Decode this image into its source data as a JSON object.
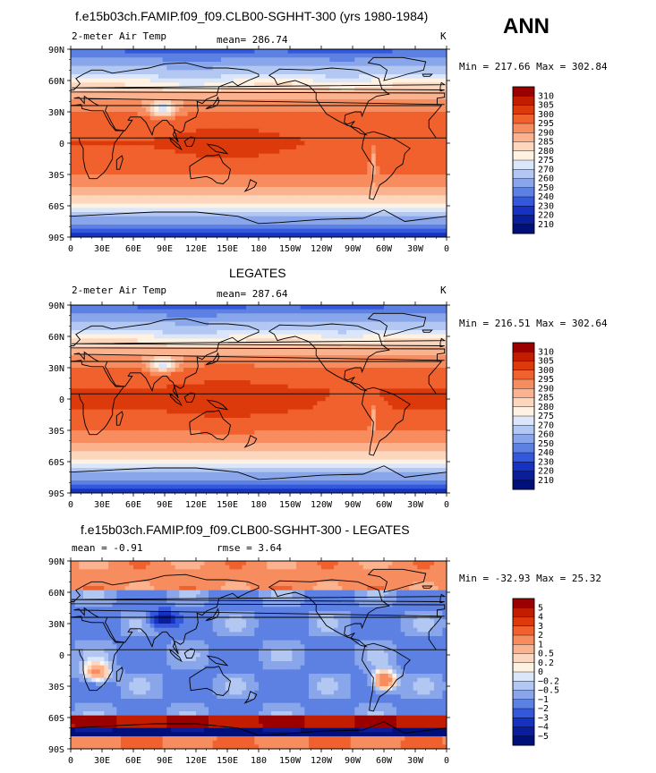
{
  "season": "ANN",
  "chart_data": [
    {
      "type": "heatmap",
      "title": "f.e15b03ch.FAMIP.f09_f09.CLB00-SGHHT-300 (yrs 1980-1984)",
      "left_label": "2-meter Air Temp",
      "center_label": "mean= 286.74",
      "right_label": "K",
      "minmax": "Min = 217.66 Max = 302.84",
      "xticks": [
        "0",
        "30E",
        "60E",
        "90E",
        "120E",
        "150E",
        "180",
        "150W",
        "120W",
        "90W",
        "60W",
        "30W",
        "0"
      ],
      "yticks": [
        "90N",
        "60N",
        "30N",
        "0",
        "30S",
        "60S",
        "90S"
      ],
      "levels": [
        "310",
        "305",
        "300",
        "295",
        "290",
        "285",
        "280",
        "275",
        "270",
        "260",
        "250",
        "240",
        "230",
        "220",
        "210"
      ],
      "colors": [
        "#9b0000",
        "#c31d00",
        "#dd3a0c",
        "#f0612e",
        "#f78c5e",
        "#fbb28e",
        "#fcd6bd",
        "#fff2e2",
        "#dbe6fb",
        "#b2c8f2",
        "#8aa6ea",
        "#5d80e3",
        "#3358db",
        "#1532c1",
        "#0a1e9c",
        "#00107a"
      ]
    },
    {
      "type": "heatmap",
      "title": "LEGATES",
      "left_label": "2-meter Air Temp",
      "center_label": "mean= 287.64",
      "right_label": "K",
      "minmax": "Min = 216.51 Max = 302.64",
      "xticks": [
        "0",
        "30E",
        "60E",
        "90E",
        "120E",
        "150E",
        "180",
        "150W",
        "120W",
        "90W",
        "60W",
        "30W",
        "0"
      ],
      "yticks": [
        "90N",
        "60N",
        "30N",
        "0",
        "30S",
        "60S",
        "90S"
      ],
      "levels": [
        "310",
        "305",
        "300",
        "295",
        "290",
        "285",
        "280",
        "275",
        "270",
        "260",
        "250",
        "240",
        "230",
        "220",
        "210"
      ],
      "colors": [
        "#9b0000",
        "#c31d00",
        "#dd3a0c",
        "#f0612e",
        "#f78c5e",
        "#fbb28e",
        "#fcd6bd",
        "#fff2e2",
        "#dbe6fb",
        "#b2c8f2",
        "#8aa6ea",
        "#5d80e3",
        "#3358db",
        "#1532c1",
        "#0a1e9c",
        "#00107a"
      ]
    },
    {
      "type": "heatmap",
      "title": "f.e15b03ch.FAMIP.f09_f09.CLB00-SGHHT-300 - LEGATES",
      "left_label": "mean =   -0.91",
      "center_label": "rmse =    3.64",
      "right_label": "",
      "minmax": "Min = -32.93 Max =  25.32",
      "xticks": [
        "0",
        "30E",
        "60E",
        "90E",
        "120E",
        "150E",
        "180",
        "150W",
        "120W",
        "90W",
        "60W",
        "30W",
        "0"
      ],
      "yticks": [
        "90N",
        "60N",
        "30N",
        "0",
        "30S",
        "60S",
        "90S"
      ],
      "levels": [
        "5",
        "4",
        "3",
        "2",
        "1",
        "0.5",
        "0.2",
        "0",
        "−0.2",
        "−0.5",
        "−1",
        "−2",
        "−3",
        "−4",
        "−5"
      ],
      "colors": [
        "#9b0000",
        "#c31d00",
        "#dd3a0c",
        "#f0612e",
        "#f78c5e",
        "#fbb28e",
        "#fcd6bd",
        "#fff2e2",
        "#dbe6fb",
        "#b2c8f2",
        "#8aa6ea",
        "#5d80e3",
        "#3358db",
        "#1532c1",
        "#0a1e9c",
        "#00107a"
      ]
    }
  ]
}
